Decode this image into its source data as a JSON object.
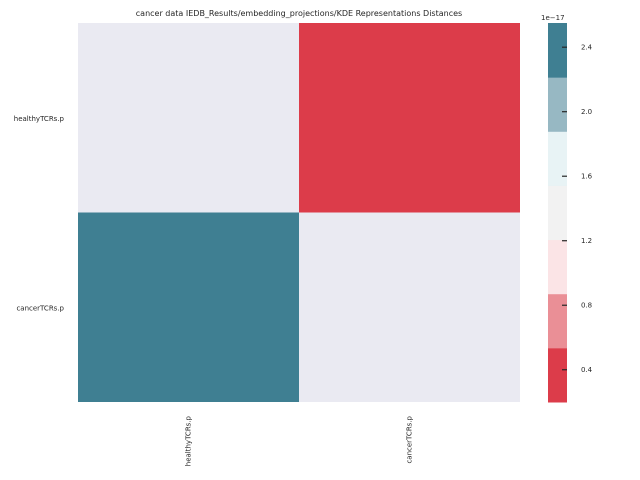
{
  "chart_data": {
    "type": "heatmap",
    "title": "cancer data IEDB_Results/embedding_projections/KDE Representations Distances",
    "xlabel": "",
    "ylabel": "",
    "row_labels": [
      "healthyTCRs.p",
      "cancerTCRs.p"
    ],
    "col_labels": [
      "healthyTCRs.p",
      "cancerTCRs.p"
    ],
    "values": [
      [
        0.0,
        0.2
      ],
      [
        2.5,
        0.0
      ]
    ],
    "colorbar": {
      "offset_text": "1e−17",
      "vmin": 0.2,
      "vmax": 2.55,
      "ticks": [
        0.4,
        0.8,
        1.2,
        1.6,
        2.0,
        2.4
      ],
      "tick_labels": [
        "0.4",
        "0.8",
        "1.2",
        "1.6",
        "2.0",
        "2.4"
      ],
      "colors": [
        "#dc3c4a",
        "#ea8f96",
        "#fbe4e6",
        "#f2f2f2",
        "#e8f3f5",
        "#97b8c3",
        "#3f7f92"
      ]
    },
    "empty_cell_color": "#eaeaf2"
  }
}
